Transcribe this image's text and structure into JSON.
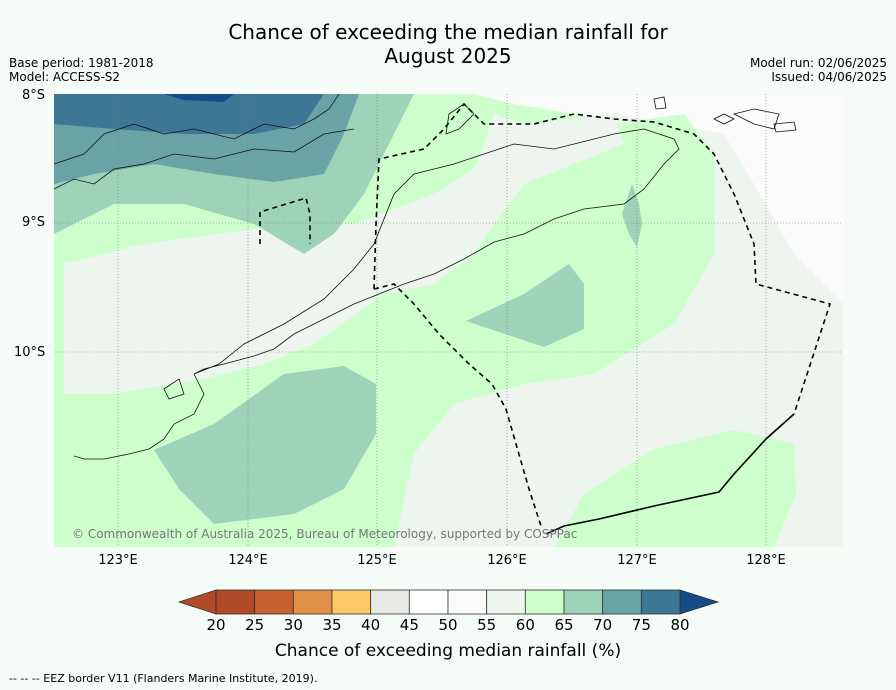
{
  "title_line1": "Chance of exceeding the median rainfall for",
  "title_line2": "August 2025",
  "base_period": "Base period: 1981-2018",
  "model": "Model: ACCESS-S2",
  "model_run": "Model run: 02/06/2025",
  "issued": "Issued: 04/06/2025",
  "lat_labels": [
    "8°S",
    "9°S",
    "10°S"
  ],
  "lon_labels": [
    "123°E",
    "124°E",
    "125°E",
    "126°E",
    "127°E",
    "128°E"
  ],
  "copyright": "© Commonwealth of Australia 2025, Bureau of Meteorology, supported by COSPPac",
  "colorbar": {
    "title": "Chance of exceeding median rainfall (%)",
    "ticks": [
      "20",
      "25",
      "30",
      "35",
      "40",
      "45",
      "50",
      "55",
      "60",
      "65",
      "70",
      "75",
      "80"
    ],
    "colors": [
      "#b04a28",
      "#c9602f",
      "#e09148",
      "#fdc865",
      "#e8e8e4",
      "#ffffff",
      "#fbfbfb",
      "#edf5ee",
      "#ccffcc",
      "#9dd3b9",
      "#6aa3a6",
      "#3e7796",
      "#174a88"
    ]
  },
  "footnote": "--  --  -- EEZ border V11 (Flanders Marine Institute, 2019)."
}
